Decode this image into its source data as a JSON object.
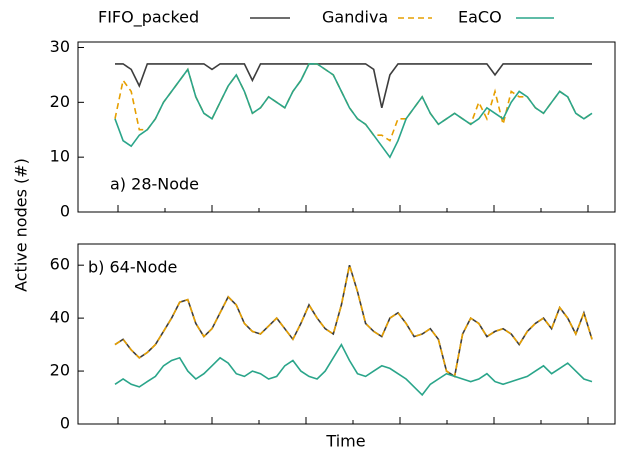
{
  "chart_data": [
    {
      "type": "line",
      "annotation": "a) 28-Node",
      "ylabel": "Active nodes (#)",
      "categories": [
        null,
        null,
        null,
        null,
        null,
        null,
        null,
        null,
        null,
        null,
        null,
        null,
        null,
        null,
        null,
        null,
        null,
        null,
        null,
        null,
        null,
        null,
        null,
        null,
        null,
        null,
        null,
        null,
        null,
        null,
        null,
        null,
        null,
        null,
        null,
        null,
        null,
        null,
        null,
        null,
        null,
        null,
        null,
        null,
        null,
        null,
        null,
        null,
        null,
        null,
        null,
        null,
        null,
        null,
        null,
        null,
        null,
        null,
        null,
        null
      ],
      "ylim": [
        0,
        31
      ],
      "yticks": [
        0,
        10,
        20,
        30
      ],
      "series": [
        {
          "name": "FIFO_packed",
          "color": "#3d3d3d",
          "line_style": "solid",
          "values": [
            27,
            27,
            26,
            23,
            27,
            27,
            27,
            27,
            27,
            27,
            27,
            27,
            26,
            27,
            27,
            27,
            27,
            24,
            27,
            27,
            27,
            27,
            27,
            27,
            27,
            27,
            27,
            27,
            27,
            27,
            27,
            27,
            26,
            19,
            25,
            27,
            27,
            27,
            27,
            27,
            27,
            27,
            27,
            27,
            27,
            27,
            27,
            25,
            27,
            27,
            27,
            27,
            27,
            27,
            27,
            27,
            27,
            27,
            27,
            27
          ]
        },
        {
          "name": "Gandiva",
          "color": "#e69f00",
          "line_style": "dashed",
          "values": [
            17,
            24,
            22,
            15,
            15,
            17,
            20,
            22,
            24,
            26,
            21,
            18,
            17,
            20,
            23,
            25,
            22,
            18,
            19,
            21,
            20,
            19,
            22,
            24,
            27,
            27,
            26,
            25,
            22,
            19,
            17,
            16,
            14,
            14,
            13,
            17,
            17,
            19,
            21,
            18,
            16,
            17,
            18,
            17,
            16,
            20,
            17,
            22,
            16,
            22,
            21,
            21,
            19,
            18,
            20,
            22,
            21,
            18,
            17,
            18
          ]
        },
        {
          "name": "EaCO",
          "color": "#2aa58a",
          "line_style": "solid",
          "values": [
            17,
            13,
            12,
            14,
            15,
            17,
            20,
            22,
            24,
            26,
            21,
            18,
            17,
            20,
            23,
            25,
            22,
            18,
            19,
            21,
            20,
            19,
            22,
            24,
            27,
            27,
            26,
            25,
            22,
            19,
            17,
            16,
            14,
            12,
            10,
            13,
            17,
            19,
            21,
            18,
            16,
            17,
            18,
            17,
            16,
            17,
            19,
            18,
            17,
            20,
            22,
            21,
            19,
            18,
            20,
            22,
            21,
            18,
            17,
            18
          ]
        }
      ]
    },
    {
      "type": "line",
      "annotation": "b) 64-Node",
      "xlabel": "Time",
      "categories": [
        null,
        null,
        null,
        null,
        null,
        null,
        null,
        null,
        null,
        null,
        null,
        null,
        null,
        null,
        null,
        null,
        null,
        null,
        null,
        null,
        null,
        null,
        null,
        null,
        null,
        null,
        null,
        null,
        null,
        null,
        null,
        null,
        null,
        null,
        null,
        null,
        null,
        null,
        null,
        null,
        null,
        null,
        null,
        null,
        null,
        null,
        null,
        null,
        null,
        null,
        null,
        null,
        null,
        null,
        null,
        null,
        null,
        null,
        null,
        null
      ],
      "ylim": [
        0,
        68
      ],
      "yticks": [
        0,
        20,
        40,
        60
      ],
      "series": [
        {
          "color": "#3d3d3d",
          "line_style": "solid",
          "values": [
            30,
            32,
            28,
            25,
            27,
            30,
            35,
            40,
            46,
            47,
            38,
            33,
            36,
            42,
            48,
            45,
            38,
            35,
            34,
            37,
            40,
            36,
            32,
            38,
            45,
            40,
            36,
            34,
            45,
            60,
            50,
            38,
            35,
            33,
            40,
            42,
            38,
            33,
            34,
            36,
            32,
            20,
            18,
            34,
            40,
            38,
            33,
            35,
            36,
            34,
            30,
            35,
            38,
            40,
            36,
            44,
            40,
            34,
            42,
            32
          ]
        },
        {
          "color": "#e69f00",
          "line_style": "dashed",
          "values": [
            30,
            32,
            28,
            25,
            27,
            30,
            35,
            40,
            46,
            47,
            38,
            33,
            36,
            42,
            48,
            45,
            38,
            35,
            34,
            37,
            40,
            36,
            32,
            38,
            45,
            40,
            36,
            34,
            45,
            60,
            50,
            38,
            35,
            33,
            40,
            42,
            38,
            33,
            34,
            36,
            32,
            20,
            18,
            34,
            40,
            38,
            33,
            35,
            36,
            34,
            30,
            35,
            38,
            40,
            36,
            44,
            40,
            34,
            42,
            32
          ]
        },
        {
          "color": "#2aa58a",
          "line_style": "solid",
          "values": [
            15,
            17,
            15,
            14,
            16,
            18,
            22,
            24,
            25,
            20,
            17,
            19,
            22,
            25,
            23,
            19,
            18,
            20,
            19,
            17,
            18,
            22,
            24,
            20,
            18,
            17,
            20,
            25,
            30,
            24,
            19,
            18,
            20,
            22,
            21,
            19,
            17,
            14,
            11,
            15,
            17,
            19,
            18,
            17,
            16,
            17,
            19,
            16,
            15,
            16,
            17,
            18,
            20,
            22,
            19,
            21,
            23,
            20,
            17,
            16
          ]
        }
      ]
    }
  ]
}
